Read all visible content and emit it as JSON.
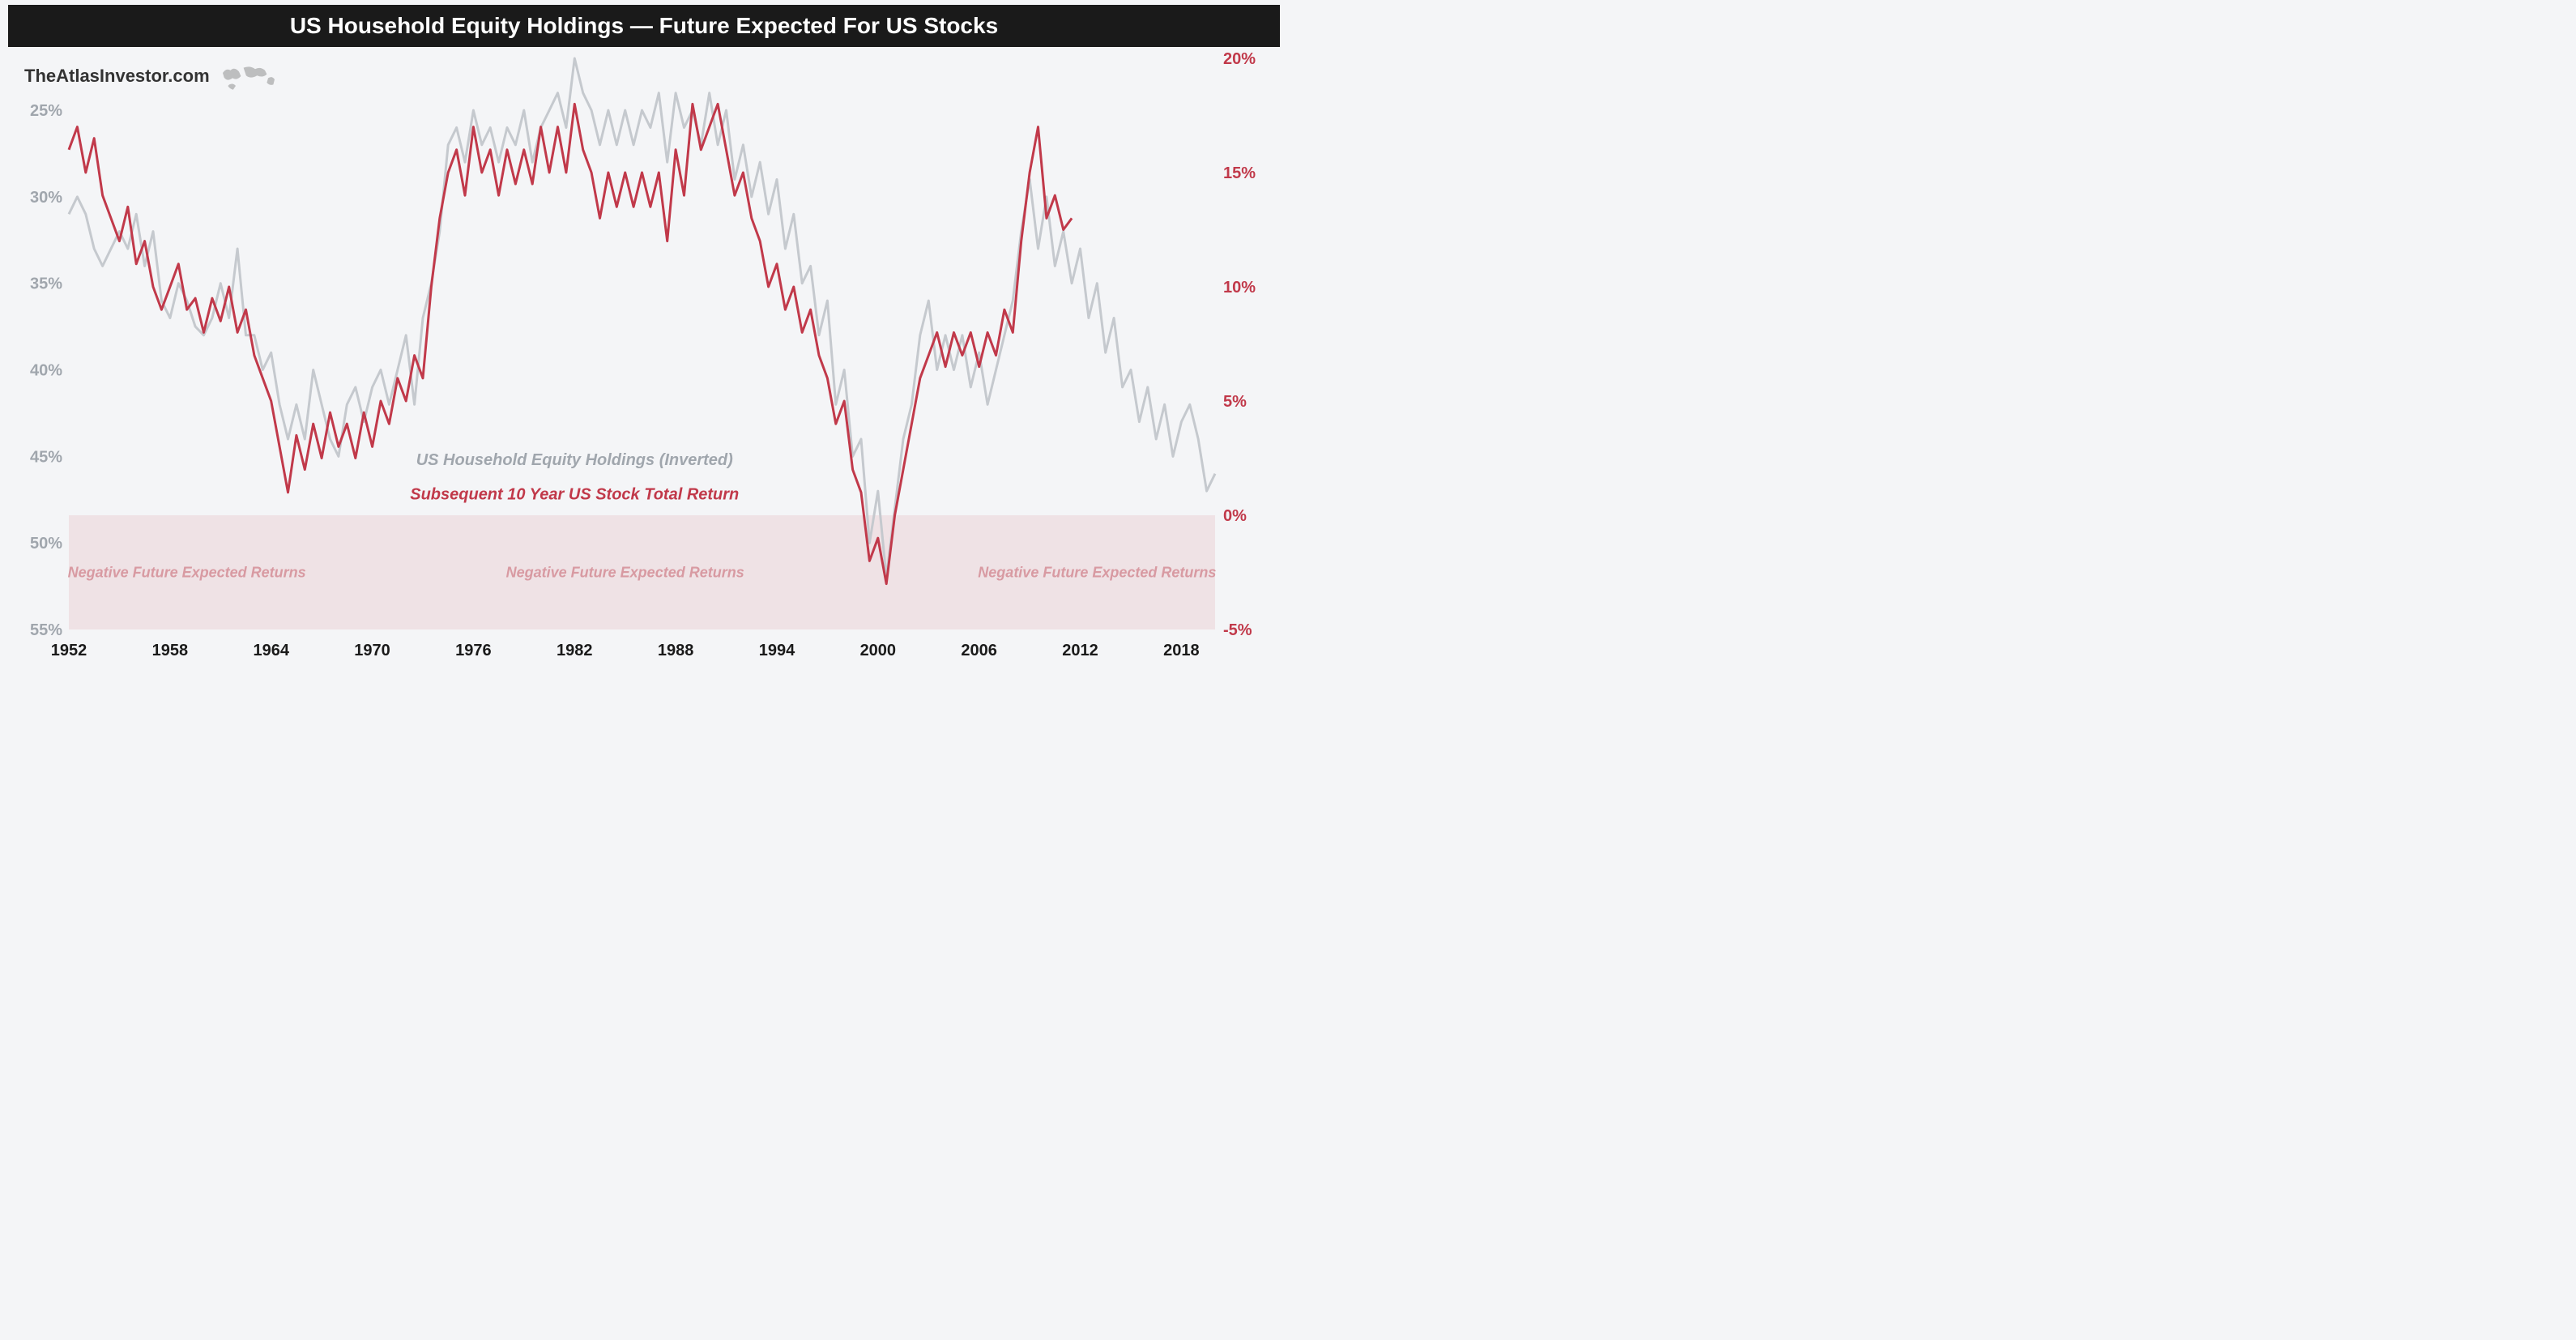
{
  "title": "US Household Equity Holdings — Future Expected For US Stocks",
  "attribution": "TheAtlasInvestor.com",
  "legend": {
    "gray": "US Household Equity Holdings (Inverted)",
    "red": "Subsequent 10 Year US Stock Total Return"
  },
  "negative_zone_label": "Negative Future Expected Returns",
  "chart": {
    "type": "line",
    "background_color": "#f4f5f7",
    "title_bg": "#1a1a1a",
    "title_color": "#ffffff",
    "gray_line_color": "#c5c9ce",
    "red_line_color": "#c1394a",
    "neg_zone_color": "#c1394a",
    "neg_zone_opacity": 0.1,
    "line_width": 3,
    "x": {
      "min": 1952,
      "max": 2020,
      "ticks": [
        1952,
        1958,
        1964,
        1970,
        1976,
        1982,
        1988,
        1994,
        2000,
        2006,
        2012,
        2018
      ]
    },
    "y_left": {
      "min": 55,
      "max": 22,
      "ticks": [
        25,
        30,
        35,
        40,
        45,
        50,
        55
      ],
      "label_color": "#a0a6ad",
      "suffix": "%"
    },
    "y_right": {
      "min": -5,
      "max": 20,
      "ticks": [
        20,
        15,
        10,
        5,
        0,
        -5
      ],
      "label_color": "#c1394a",
      "suffix": "%"
    },
    "neg_zone_right_threshold": 0,
    "left_axis_fontsize": 20,
    "right_axis_fontsize": 20,
    "bottom_axis_fontsize": 20,
    "legend_fontsize": 20,
    "neg_label_positions_x": [
      1959,
      1985,
      2013
    ],
    "gray_series": [
      [
        1952,
        31
      ],
      [
        1952.5,
        30
      ],
      [
        1953,
        31
      ],
      [
        1953.5,
        33
      ],
      [
        1954,
        34
      ],
      [
        1955,
        32
      ],
      [
        1955.5,
        33
      ],
      [
        1956,
        31
      ],
      [
        1956.5,
        34
      ],
      [
        1957,
        32
      ],
      [
        1957.5,
        36
      ],
      [
        1958,
        37
      ],
      [
        1958.5,
        35
      ],
      [
        1959,
        36
      ],
      [
        1959.5,
        37.5
      ],
      [
        1960,
        38
      ],
      [
        1960.5,
        37
      ],
      [
        1961,
        35
      ],
      [
        1961.5,
        37
      ],
      [
        1962,
        33
      ],
      [
        1962.5,
        38
      ],
      [
        1963,
        38
      ],
      [
        1963.5,
        40
      ],
      [
        1964,
        39
      ],
      [
        1964.5,
        42
      ],
      [
        1965,
        44
      ],
      [
        1965.5,
        42
      ],
      [
        1966,
        44
      ],
      [
        1966.5,
        40
      ],
      [
        1967,
        42
      ],
      [
        1967.5,
        44
      ],
      [
        1968,
        45
      ],
      [
        1968.5,
        42
      ],
      [
        1969,
        41
      ],
      [
        1969.5,
        43
      ],
      [
        1970,
        41
      ],
      [
        1970.5,
        40
      ],
      [
        1971,
        42
      ],
      [
        1971.5,
        40
      ],
      [
        1972,
        38
      ],
      [
        1972.5,
        42
      ],
      [
        1973,
        37
      ],
      [
        1973.5,
        35
      ],
      [
        1974,
        32
      ],
      [
        1974.5,
        27
      ],
      [
        1975,
        26
      ],
      [
        1975.5,
        28
      ],
      [
        1976,
        25
      ],
      [
        1976.5,
        27
      ],
      [
        1977,
        26
      ],
      [
        1977.5,
        28
      ],
      [
        1978,
        26
      ],
      [
        1978.5,
        27
      ],
      [
        1979,
        25
      ],
      [
        1979.5,
        28
      ],
      [
        1980,
        26
      ],
      [
        1980.5,
        25
      ],
      [
        1981,
        24
      ],
      [
        1981.5,
        26
      ],
      [
        1982,
        22
      ],
      [
        1982.5,
        24
      ],
      [
        1983,
        25
      ],
      [
        1983.5,
        27
      ],
      [
        1984,
        25
      ],
      [
        1984.5,
        27
      ],
      [
        1985,
        25
      ],
      [
        1985.5,
        27
      ],
      [
        1986,
        25
      ],
      [
        1986.5,
        26
      ],
      [
        1987,
        24
      ],
      [
        1987.5,
        28
      ],
      [
        1988,
        24
      ],
      [
        1988.5,
        26
      ],
      [
        1989,
        25
      ],
      [
        1989.5,
        27
      ],
      [
        1990,
        24
      ],
      [
        1990.5,
        27
      ],
      [
        1991,
        25
      ],
      [
        1991.5,
        29
      ],
      [
        1992,
        27
      ],
      [
        1992.5,
        30
      ],
      [
        1993,
        28
      ],
      [
        1993.5,
        31
      ],
      [
        1994,
        29
      ],
      [
        1994.5,
        33
      ],
      [
        1995,
        31
      ],
      [
        1995.5,
        35
      ],
      [
        1996,
        34
      ],
      [
        1996.5,
        38
      ],
      [
        1997,
        36
      ],
      [
        1997.5,
        42
      ],
      [
        1998,
        40
      ],
      [
        1998.5,
        45
      ],
      [
        1999,
        44
      ],
      [
        1999.5,
        50
      ],
      [
        2000,
        47
      ],
      [
        2000.5,
        52
      ],
      [
        2001,
        48
      ],
      [
        2001.5,
        44
      ],
      [
        2002,
        42
      ],
      [
        2002.5,
        38
      ],
      [
        2003,
        36
      ],
      [
        2003.5,
        40
      ],
      [
        2004,
        38
      ],
      [
        2004.5,
        40
      ],
      [
        2005,
        38
      ],
      [
        2005.5,
        41
      ],
      [
        2006,
        39
      ],
      [
        2006.5,
        42
      ],
      [
        2007,
        40
      ],
      [
        2007.5,
        38
      ],
      [
        2008,
        36
      ],
      [
        2008.5,
        32
      ],
      [
        2009,
        29
      ],
      [
        2009.5,
        33
      ],
      [
        2010,
        30
      ],
      [
        2010.5,
        34
      ],
      [
        2011,
        32
      ],
      [
        2011.5,
        35
      ],
      [
        2012,
        33
      ],
      [
        2012.5,
        37
      ],
      [
        2013,
        35
      ],
      [
        2013.5,
        39
      ],
      [
        2014,
        37
      ],
      [
        2014.5,
        41
      ],
      [
        2015,
        40
      ],
      [
        2015.5,
        43
      ],
      [
        2016,
        41
      ],
      [
        2016.5,
        44
      ],
      [
        2017,
        42
      ],
      [
        2017.5,
        45
      ],
      [
        2018,
        43
      ],
      [
        2018.5,
        42
      ],
      [
        2019,
        44
      ],
      [
        2019.5,
        47
      ],
      [
        2020,
        46
      ]
    ],
    "red_series": [
      [
        1952,
        16
      ],
      [
        1952.5,
        17
      ],
      [
        1953,
        15
      ],
      [
        1953.5,
        16.5
      ],
      [
        1954,
        14
      ],
      [
        1954.5,
        13
      ],
      [
        1955,
        12
      ],
      [
        1955.5,
        13.5
      ],
      [
        1956,
        11
      ],
      [
        1956.5,
        12
      ],
      [
        1957,
        10
      ],
      [
        1957.5,
        9
      ],
      [
        1958,
        10
      ],
      [
        1958.5,
        11
      ],
      [
        1959,
        9
      ],
      [
        1959.5,
        9.5
      ],
      [
        1960,
        8
      ],
      [
        1960.5,
        9.5
      ],
      [
        1961,
        8.5
      ],
      [
        1961.5,
        10
      ],
      [
        1962,
        8
      ],
      [
        1962.5,
        9
      ],
      [
        1963,
        7
      ],
      [
        1963.5,
        6
      ],
      [
        1964,
        5
      ],
      [
        1964.5,
        3
      ],
      [
        1965,
        1
      ],
      [
        1965.5,
        3.5
      ],
      [
        1966,
        2
      ],
      [
        1966.5,
        4
      ],
      [
        1967,
        2.5
      ],
      [
        1967.5,
        4.5
      ],
      [
        1968,
        3
      ],
      [
        1968.5,
        4
      ],
      [
        1969,
        2.5
      ],
      [
        1969.5,
        4.5
      ],
      [
        1970,
        3
      ],
      [
        1970.5,
        5
      ],
      [
        1971,
        4
      ],
      [
        1971.5,
        6
      ],
      [
        1972,
        5
      ],
      [
        1972.5,
        7
      ],
      [
        1973,
        6
      ],
      [
        1973.5,
        10
      ],
      [
        1974,
        13
      ],
      [
        1974.5,
        15
      ],
      [
        1975,
        16
      ],
      [
        1975.5,
        14
      ],
      [
        1976,
        17
      ],
      [
        1976.5,
        15
      ],
      [
        1977,
        16
      ],
      [
        1977.5,
        14
      ],
      [
        1978,
        16
      ],
      [
        1978.5,
        14.5
      ],
      [
        1979,
        16
      ],
      [
        1979.5,
        14.5
      ],
      [
        1980,
        17
      ],
      [
        1980.5,
        15
      ],
      [
        1981,
        17
      ],
      [
        1981.5,
        15
      ],
      [
        1982,
        18
      ],
      [
        1982.5,
        16
      ],
      [
        1983,
        15
      ],
      [
        1983.5,
        13
      ],
      [
        1984,
        15
      ],
      [
        1984.5,
        13.5
      ],
      [
        1985,
        15
      ],
      [
        1985.5,
        13.5
      ],
      [
        1986,
        15
      ],
      [
        1986.5,
        13.5
      ],
      [
        1987,
        15
      ],
      [
        1987.5,
        12
      ],
      [
        1988,
        16
      ],
      [
        1988.5,
        14
      ],
      [
        1989,
        18
      ],
      [
        1989.5,
        16
      ],
      [
        1990,
        17
      ],
      [
        1990.5,
        18
      ],
      [
        1991,
        16
      ],
      [
        1991.5,
        14
      ],
      [
        1992,
        15
      ],
      [
        1992.5,
        13
      ],
      [
        1993,
        12
      ],
      [
        1993.5,
        10
      ],
      [
        1994,
        11
      ],
      [
        1994.5,
        9
      ],
      [
        1995,
        10
      ],
      [
        1995.5,
        8
      ],
      [
        1996,
        9
      ],
      [
        1996.5,
        7
      ],
      [
        1997,
        6
      ],
      [
        1997.5,
        4
      ],
      [
        1998,
        5
      ],
      [
        1998.5,
        2
      ],
      [
        1999,
        1
      ],
      [
        1999.5,
        -2
      ],
      [
        2000,
        -1
      ],
      [
        2000.5,
        -3
      ],
      [
        2001,
        0
      ],
      [
        2001.5,
        2
      ],
      [
        2002,
        4
      ],
      [
        2002.5,
        6
      ],
      [
        2003,
        7
      ],
      [
        2003.5,
        8
      ],
      [
        2004,
        6.5
      ],
      [
        2004.5,
        8
      ],
      [
        2005,
        7
      ],
      [
        2005.5,
        8
      ],
      [
        2006,
        6.5
      ],
      [
        2006.5,
        8
      ],
      [
        2007,
        7
      ],
      [
        2007.5,
        9
      ],
      [
        2008,
        8
      ],
      [
        2008.5,
        12
      ],
      [
        2009,
        15
      ],
      [
        2009.5,
        17
      ],
      [
        2010,
        13
      ],
      [
        2010.5,
        14
      ],
      [
        2011,
        12.5
      ],
      [
        2011.5,
        13
      ]
    ]
  }
}
